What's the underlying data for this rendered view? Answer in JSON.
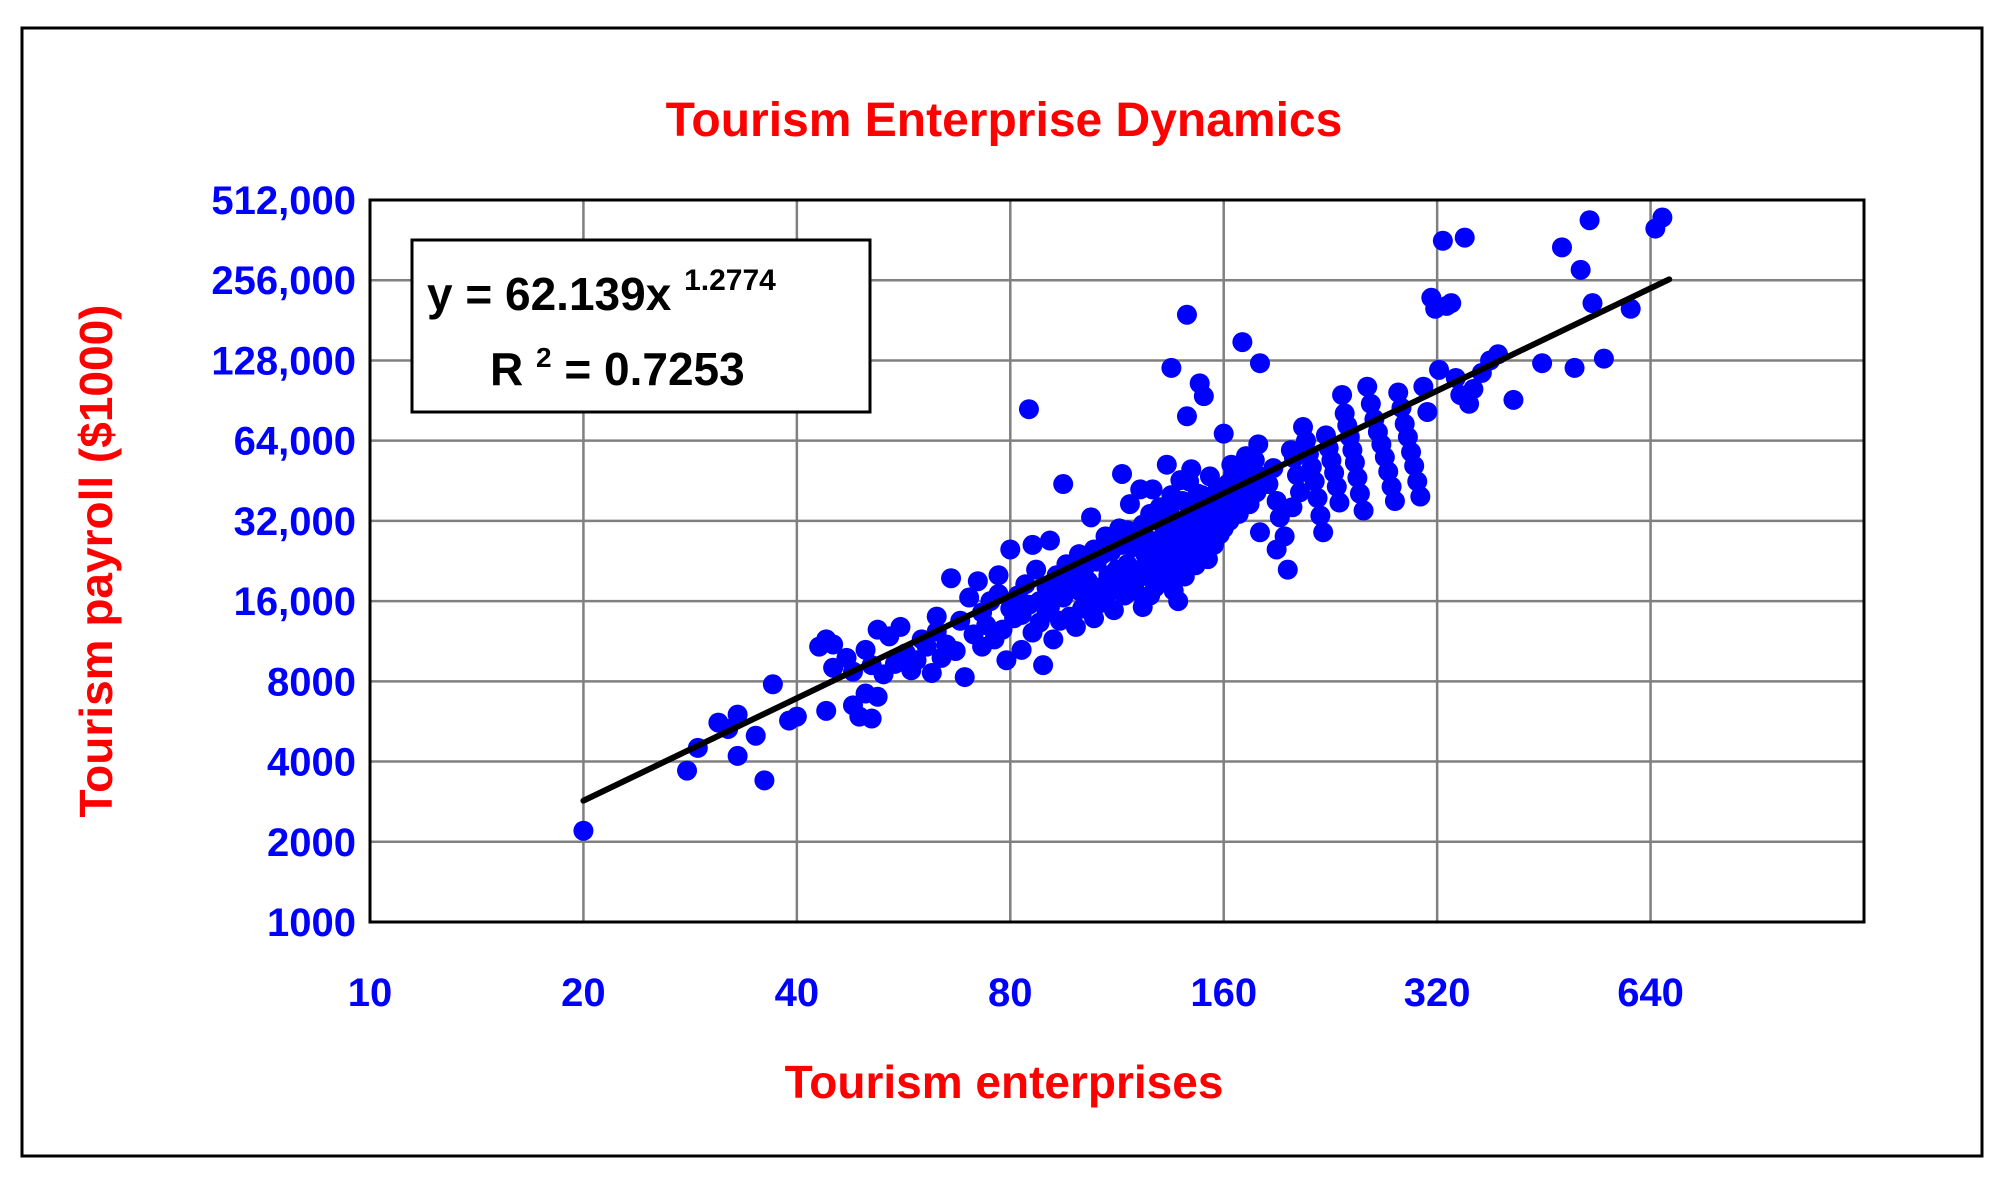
{
  "chart_data": {
    "type": "scatter",
    "title": "Tourism Enterprise Dynamics",
    "xlabel": "Tourism enterprises",
    "ylabel": "Tourism payroll ($1000)",
    "x_scale": "log2",
    "y_scale": "log2",
    "xlim": [
      10,
      1280
    ],
    "ylim": [
      1000,
      512000
    ],
    "x_ticks": [
      10,
      20,
      40,
      80,
      160,
      320,
      640
    ],
    "x_tick_labels": [
      "10",
      "20",
      "40",
      "80",
      "160",
      "320",
      "640"
    ],
    "y_ticks": [
      1000,
      2000,
      4000,
      8000,
      16000,
      32000,
      64000,
      128000,
      256000,
      512000
    ],
    "y_tick_labels": [
      "1000",
      "2000",
      "4000",
      "8000",
      "16,000",
      "32,000",
      "64,000",
      "128,000",
      "256,000",
      "512,000"
    ],
    "grid": true,
    "trendline": {
      "equation_prefix": "y = 62.139x",
      "equation_exponent": "1.2774",
      "r2_prefix": "R",
      "r2_sup": "2",
      "r2_value": " = 0.7253",
      "a": 62.139,
      "b": 1.2774,
      "x_range": [
        20,
        680
      ],
      "color": "#000000"
    },
    "marker_color": "#0000ff",
    "series": [
      {
        "points": [
          [
            20,
            2200
          ],
          [
            28,
            3700
          ],
          [
            29,
            4500
          ],
          [
            31,
            5600
          ],
          [
            32,
            5300
          ],
          [
            33,
            6000
          ],
          [
            33,
            4200
          ],
          [
            35,
            5000
          ],
          [
            36,
            3400
          ],
          [
            37,
            7800
          ],
          [
            39,
            5700
          ],
          [
            40,
            5900
          ],
          [
            43,
            10800
          ],
          [
            44,
            11500
          ],
          [
            44,
            6200
          ],
          [
            45,
            9000
          ],
          [
            45,
            11000
          ],
          [
            47,
            9800
          ],
          [
            48,
            8700
          ],
          [
            48,
            6500
          ],
          [
            49,
            5900
          ],
          [
            50,
            10500
          ],
          [
            50,
            7200
          ],
          [
            51,
            9200
          ],
          [
            51,
            5800
          ],
          [
            52,
            12500
          ],
          [
            52,
            7000
          ],
          [
            53,
            8500
          ],
          [
            54,
            11800
          ],
          [
            55,
            9300
          ],
          [
            56,
            12800
          ],
          [
            57,
            10200
          ],
          [
            58,
            8800
          ],
          [
            59,
            9600
          ],
          [
            60,
            11500
          ],
          [
            61,
            10800
          ],
          [
            62,
            8600
          ],
          [
            63,
            12300
          ],
          [
            63,
            14000
          ],
          [
            64,
            9800
          ],
          [
            65,
            11000
          ],
          [
            66,
            19500
          ],
          [
            67,
            10400
          ],
          [
            68,
            13500
          ],
          [
            69,
            8300
          ],
          [
            70,
            16500
          ],
          [
            71,
            12000
          ],
          [
            72,
            19000
          ],
          [
            73,
            10800
          ],
          [
            73,
            14500
          ],
          [
            74,
            13000
          ],
          [
            75,
            16000
          ],
          [
            76,
            11500
          ],
          [
            77,
            20000
          ],
          [
            77,
            17000
          ],
          [
            78,
            12500
          ],
          [
            79,
            9600
          ],
          [
            80,
            15000
          ],
          [
            80,
            25000
          ],
          [
            81,
            13800
          ],
          [
            82,
            16800
          ],
          [
            83,
            10500
          ],
          [
            83,
            14200
          ],
          [
            84,
            18500
          ],
          [
            85,
            84000
          ],
          [
            85,
            15500
          ],
          [
            86,
            26000
          ],
          [
            86,
            12200
          ],
          [
            87,
            21000
          ],
          [
            88,
            16000
          ],
          [
            88,
            13300
          ],
          [
            89,
            9200
          ],
          [
            90,
            18000
          ],
          [
            90,
            14500
          ],
          [
            91,
            27000
          ],
          [
            91,
            15200
          ],
          [
            92,
            11500
          ],
          [
            93,
            20000
          ],
          [
            93,
            17000
          ],
          [
            94,
            13500
          ],
          [
            95,
            44000
          ],
          [
            95,
            16500
          ],
          [
            96,
            22000
          ],
          [
            97,
            18500
          ],
          [
            97,
            14000
          ],
          [
            98,
            20500
          ],
          [
            99,
            12800
          ],
          [
            100,
            17500
          ],
          [
            100,
            24000
          ],
          [
            101,
            15000
          ],
          [
            102,
            21500
          ],
          [
            103,
            19000
          ],
          [
            104,
            16200
          ],
          [
            105,
            25000
          ],
          [
            105,
            13800
          ],
          [
            106,
            22500
          ],
          [
            107,
            18000
          ],
          [
            108,
            15800
          ],
          [
            109,
            28000
          ],
          [
            110,
            20000
          ],
          [
            110,
            17200
          ],
          [
            111,
            24500
          ],
          [
            112,
            14800
          ],
          [
            113,
            21000
          ],
          [
            114,
            30000
          ],
          [
            114,
            18500
          ],
          [
            115,
            26000
          ],
          [
            116,
            16800
          ],
          [
            117,
            22000
          ],
          [
            118,
            19500
          ],
          [
            118,
            37000
          ],
          [
            119,
            25500
          ],
          [
            120,
            17500
          ],
          [
            121,
            28500
          ],
          [
            122,
            21000
          ],
          [
            123,
            31000
          ],
          [
            123,
            15200
          ],
          [
            124,
            24000
          ],
          [
            125,
            19800
          ],
          [
            126,
            27000
          ],
          [
            127,
            42000
          ],
          [
            127,
            22500
          ],
          [
            128,
            18000
          ],
          [
            129,
            33000
          ],
          [
            130,
            25000
          ],
          [
            131,
            20500
          ],
          [
            132,
            29000
          ],
          [
            133,
            52000
          ],
          [
            133,
            23500
          ],
          [
            134,
            35000
          ],
          [
            135,
            19000
          ],
          [
            136,
            27500
          ],
          [
            137,
            24000
          ],
          [
            138,
            31500
          ],
          [
            139,
            21500
          ],
          [
            140,
            38000
          ],
          [
            140,
            26500
          ],
          [
            141,
            30000
          ],
          [
            142,
            22800
          ],
          [
            143,
            45000
          ],
          [
            143,
            28000
          ],
          [
            144,
            33500
          ],
          [
            145,
            25000
          ],
          [
            146,
            36000
          ],
          [
            147,
            29500
          ],
          [
            148,
            24200
          ],
          [
            149,
            40000
          ],
          [
            150,
            31000
          ],
          [
            150,
            27000
          ],
          [
            151,
            34500
          ],
          [
            152,
            23000
          ],
          [
            153,
            47000
          ],
          [
            154,
            30500
          ],
          [
            155,
            26000
          ],
          [
            156,
            37500
          ],
          [
            157,
            33000
          ],
          [
            158,
            28500
          ],
          [
            159,
            42000
          ],
          [
            160,
            35000
          ],
          [
            160,
            30000
          ],
          [
            161,
            39000
          ],
          [
            162,
            44000
          ],
          [
            163,
            32000
          ],
          [
            164,
            36500
          ],
          [
            165,
            48000
          ],
          [
            166,
            38000
          ],
          [
            167,
            41500
          ],
          [
            168,
            34000
          ],
          [
            169,
            52000
          ],
          [
            170,
            45000
          ],
          [
            171,
            40000
          ],
          [
            172,
            56000
          ],
          [
            173,
            43000
          ],
          [
            174,
            37000
          ],
          [
            175,
            49000
          ],
          [
            176,
            46000
          ],
          [
            177,
            54000
          ],
          [
            178,
            41000
          ],
          [
            179,
            62000
          ],
          [
            180,
            47000
          ],
          [
            115,
            48000
          ],
          [
            122,
            42000
          ],
          [
            126,
            34000
          ],
          [
            130,
            36000
          ],
          [
            135,
            40000
          ],
          [
            139,
            45500
          ],
          [
            144,
            50000
          ],
          [
            147,
            40500
          ],
          [
            152,
            38000
          ],
          [
            157,
            42500
          ],
          [
            104,
            33000
          ],
          [
            108,
            24000
          ],
          [
            112,
            27000
          ],
          [
            117,
            29500
          ],
          [
            121,
            19500
          ],
          [
            126,
            16800
          ],
          [
            131,
            22000
          ],
          [
            136,
            17500
          ],
          [
            141,
            19800
          ],
          [
            146,
            21800
          ],
          [
            138,
            16000
          ],
          [
            142,
            190000
          ],
          [
            135,
            120000
          ],
          [
            148,
            105000
          ],
          [
            150,
            94000
          ],
          [
            142,
            79000
          ],
          [
            170,
            150000
          ],
          [
            180,
            125000
          ],
          [
            160,
            68000
          ],
          [
            164,
            52000
          ],
          [
            185,
            44000
          ],
          [
            188,
            50500
          ],
          [
            190,
            38000
          ],
          [
            192,
            33000
          ],
          [
            195,
            28000
          ],
          [
            197,
            21000
          ],
          [
            199,
            59000
          ],
          [
            201,
            55000
          ],
          [
            203,
            47500
          ],
          [
            205,
            41000
          ],
          [
            207,
            72000
          ],
          [
            209,
            64000
          ],
          [
            211,
            57000
          ],
          [
            213,
            51000
          ],
          [
            215,
            45000
          ],
          [
            217,
            39000
          ],
          [
            219,
            33500
          ],
          [
            221,
            29000
          ],
          [
            223,
            67000
          ],
          [
            225,
            60000
          ],
          [
            227,
            54000
          ],
          [
            229,
            48500
          ],
          [
            231,
            43000
          ],
          [
            233,
            37500
          ],
          [
            235,
            95000
          ],
          [
            237,
            81000
          ],
          [
            239,
            73000
          ],
          [
            241,
            66000
          ],
          [
            243,
            59000
          ],
          [
            245,
            53000
          ],
          [
            247,
            46500
          ],
          [
            249,
            40500
          ],
          [
            252,
            35000
          ],
          [
            255,
            102000
          ],
          [
            258,
            88000
          ],
          [
            261,
            77000
          ],
          [
            264,
            69000
          ],
          [
            267,
            62000
          ],
          [
            270,
            55500
          ],
          [
            273,
            49000
          ],
          [
            276,
            43000
          ],
          [
            279,
            38000
          ],
          [
            282,
            97000
          ],
          [
            285,
            85000
          ],
          [
            288,
            74000
          ],
          [
            291,
            66000
          ],
          [
            294,
            58000
          ],
          [
            297,
            51500
          ],
          [
            300,
            45000
          ],
          [
            303,
            39500
          ],
          [
            306,
            102000
          ],
          [
            310,
            82000
          ],
          [
            314,
            220000
          ],
          [
            318,
            200000
          ],
          [
            322,
            118000
          ],
          [
            326,
            360000
          ],
          [
            330,
            205000
          ],
          [
            335,
            210000
          ],
          [
            340,
            110000
          ],
          [
            345,
            95000
          ],
          [
            350,
            370000
          ],
          [
            355,
            88000
          ],
          [
            360,
            100000
          ],
          [
            370,
            115000
          ],
          [
            380,
            128000
          ],
          [
            390,
            135000
          ],
          [
            410,
            91000
          ],
          [
            450,
            125000
          ],
          [
            480,
            340000
          ],
          [
            500,
            120000
          ],
          [
            510,
            280000
          ],
          [
            525,
            430000
          ],
          [
            530,
            210000
          ],
          [
            550,
            130000
          ],
          [
            600,
            200000
          ],
          [
            650,
            400000
          ],
          [
            665,
            440000
          ],
          [
            180,
            29000
          ],
          [
            190,
            25000
          ],
          [
            200,
            36000
          ]
        ]
      }
    ]
  }
}
